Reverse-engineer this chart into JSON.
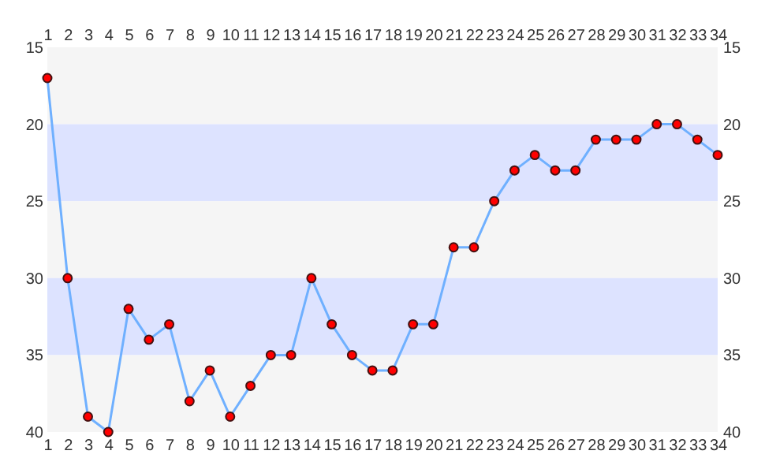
{
  "chart_data": {
    "type": "line",
    "marker": "circle",
    "line_style": "solid",
    "x": [
      1,
      2,
      3,
      4,
      5,
      6,
      7,
      8,
      9,
      10,
      11,
      12,
      13,
      14,
      15,
      16,
      17,
      18,
      19,
      20,
      21,
      22,
      23,
      24,
      25,
      26,
      27,
      28,
      29,
      30,
      31,
      32,
      33,
      34
    ],
    "series": [
      {
        "color": "#6fb0ff",
        "values": [
          17,
          30,
          39,
          40,
          32,
          34,
          33,
          38,
          36,
          39,
          37,
          35,
          35,
          30,
          33,
          35,
          36,
          36,
          33,
          33,
          28,
          28,
          25,
          23,
          22,
          23,
          23,
          21,
          21,
          21,
          20,
          20,
          21,
          22
        ]
      }
    ],
    "xlim": [
      1,
      34
    ],
    "xticks": [
      1,
      2,
      3,
      4,
      5,
      6,
      7,
      8,
      9,
      10,
      11,
      12,
      13,
      14,
      15,
      16,
      17,
      18,
      19,
      20,
      21,
      22,
      23,
      24,
      25,
      26,
      27,
      28,
      29,
      30,
      31,
      32,
      33,
      34
    ],
    "x2lim": [
      1,
      34
    ],
    "x2ticks": [
      1,
      2,
      3,
      4,
      5,
      6,
      7,
      8,
      9,
      10,
      11,
      12,
      13,
      14,
      15,
      16,
      17,
      18,
      19,
      20,
      21,
      22,
      23,
      24,
      25,
      26,
      27,
      28,
      29,
      30,
      31,
      32,
      33,
      34
    ],
    "ylim": [
      40,
      15
    ],
    "yticks": [
      15,
      20,
      25,
      30,
      35,
      40
    ],
    "y2lim": [
      40,
      15
    ],
    "y2ticks": [
      15,
      20,
      25,
      30,
      35,
      40
    ],
    "bands": [
      {
        "axis": "y",
        "from": 15,
        "to": 20,
        "color": "#f5f5f5"
      },
      {
        "axis": "y",
        "from": 20,
        "to": 25,
        "color": "#dde3ff"
      },
      {
        "axis": "y",
        "from": 25,
        "to": 30,
        "color": "#f5f5f5"
      },
      {
        "axis": "y",
        "from": 30,
        "to": 35,
        "color": "#dde3ff"
      },
      {
        "axis": "y",
        "from": 35,
        "to": 40,
        "color": "#f5f5f5"
      }
    ]
  }
}
